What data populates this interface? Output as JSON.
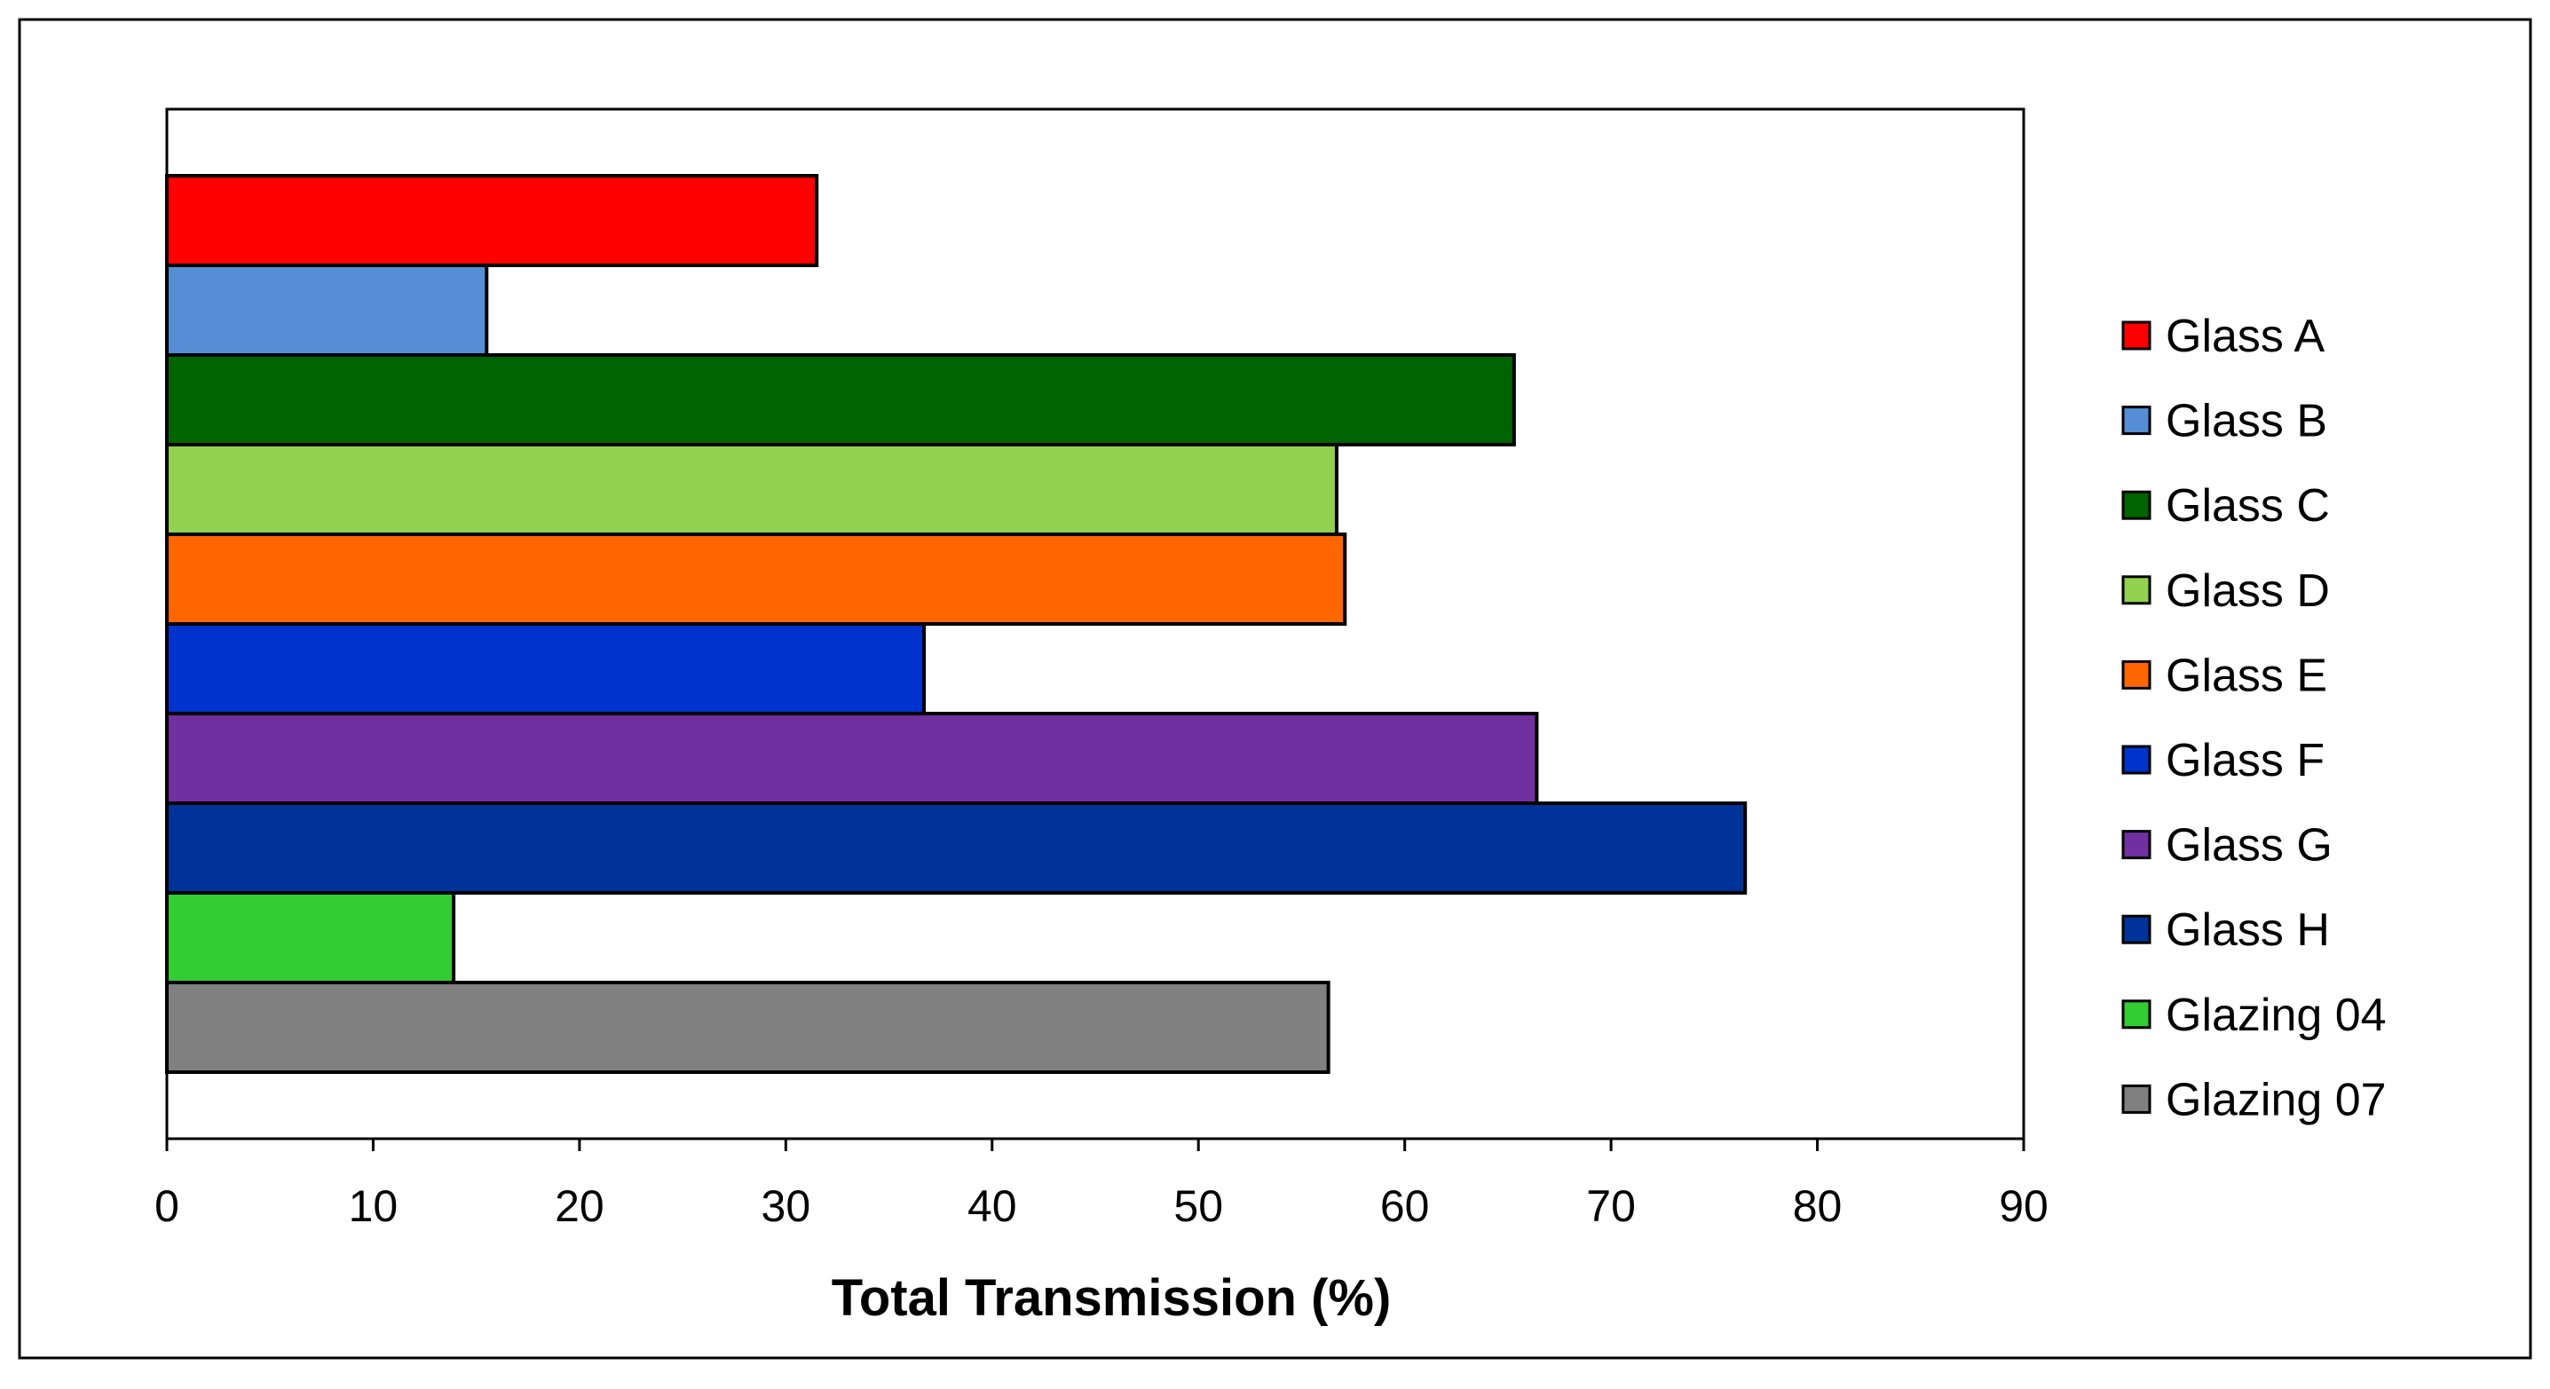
{
  "chart_data": {
    "type": "bar",
    "orientation": "horizontal",
    "title": "",
    "xlabel": "Total Transmission (%)",
    "ylabel": "",
    "xlim": [
      0,
      90
    ],
    "xticks": [
      "0",
      "10",
      "20",
      "30",
      "40",
      "50",
      "60",
      "70",
      "80",
      "90"
    ],
    "grid": false,
    "legend_position": "right",
    "series": [
      {
        "name": "Glass A",
        "value": 31.5,
        "color": "#ff0000"
      },
      {
        "name": "Glass B",
        "value": 15.5,
        "color": "#558ed5"
      },
      {
        "name": "Glass C",
        "value": 65.3,
        "color": "#006400"
      },
      {
        "name": "Glass D",
        "value": 56.7,
        "color": "#92d050"
      },
      {
        "name": "Glass E",
        "value": 57.1,
        "color": "#ff6600"
      },
      {
        "name": "Glass F",
        "value": 36.7,
        "color": "#0033cc"
      },
      {
        "name": "Glass G",
        "value": 66.4,
        "color": "#7030a0"
      },
      {
        "name": "Glass H",
        "value": 76.5,
        "color": "#003399"
      },
      {
        "name": "Glazing 04",
        "value": 13.9,
        "color": "#33cc33"
      },
      {
        "name": "Glazing 07",
        "value": 56.3,
        "color": "#808080"
      }
    ]
  }
}
